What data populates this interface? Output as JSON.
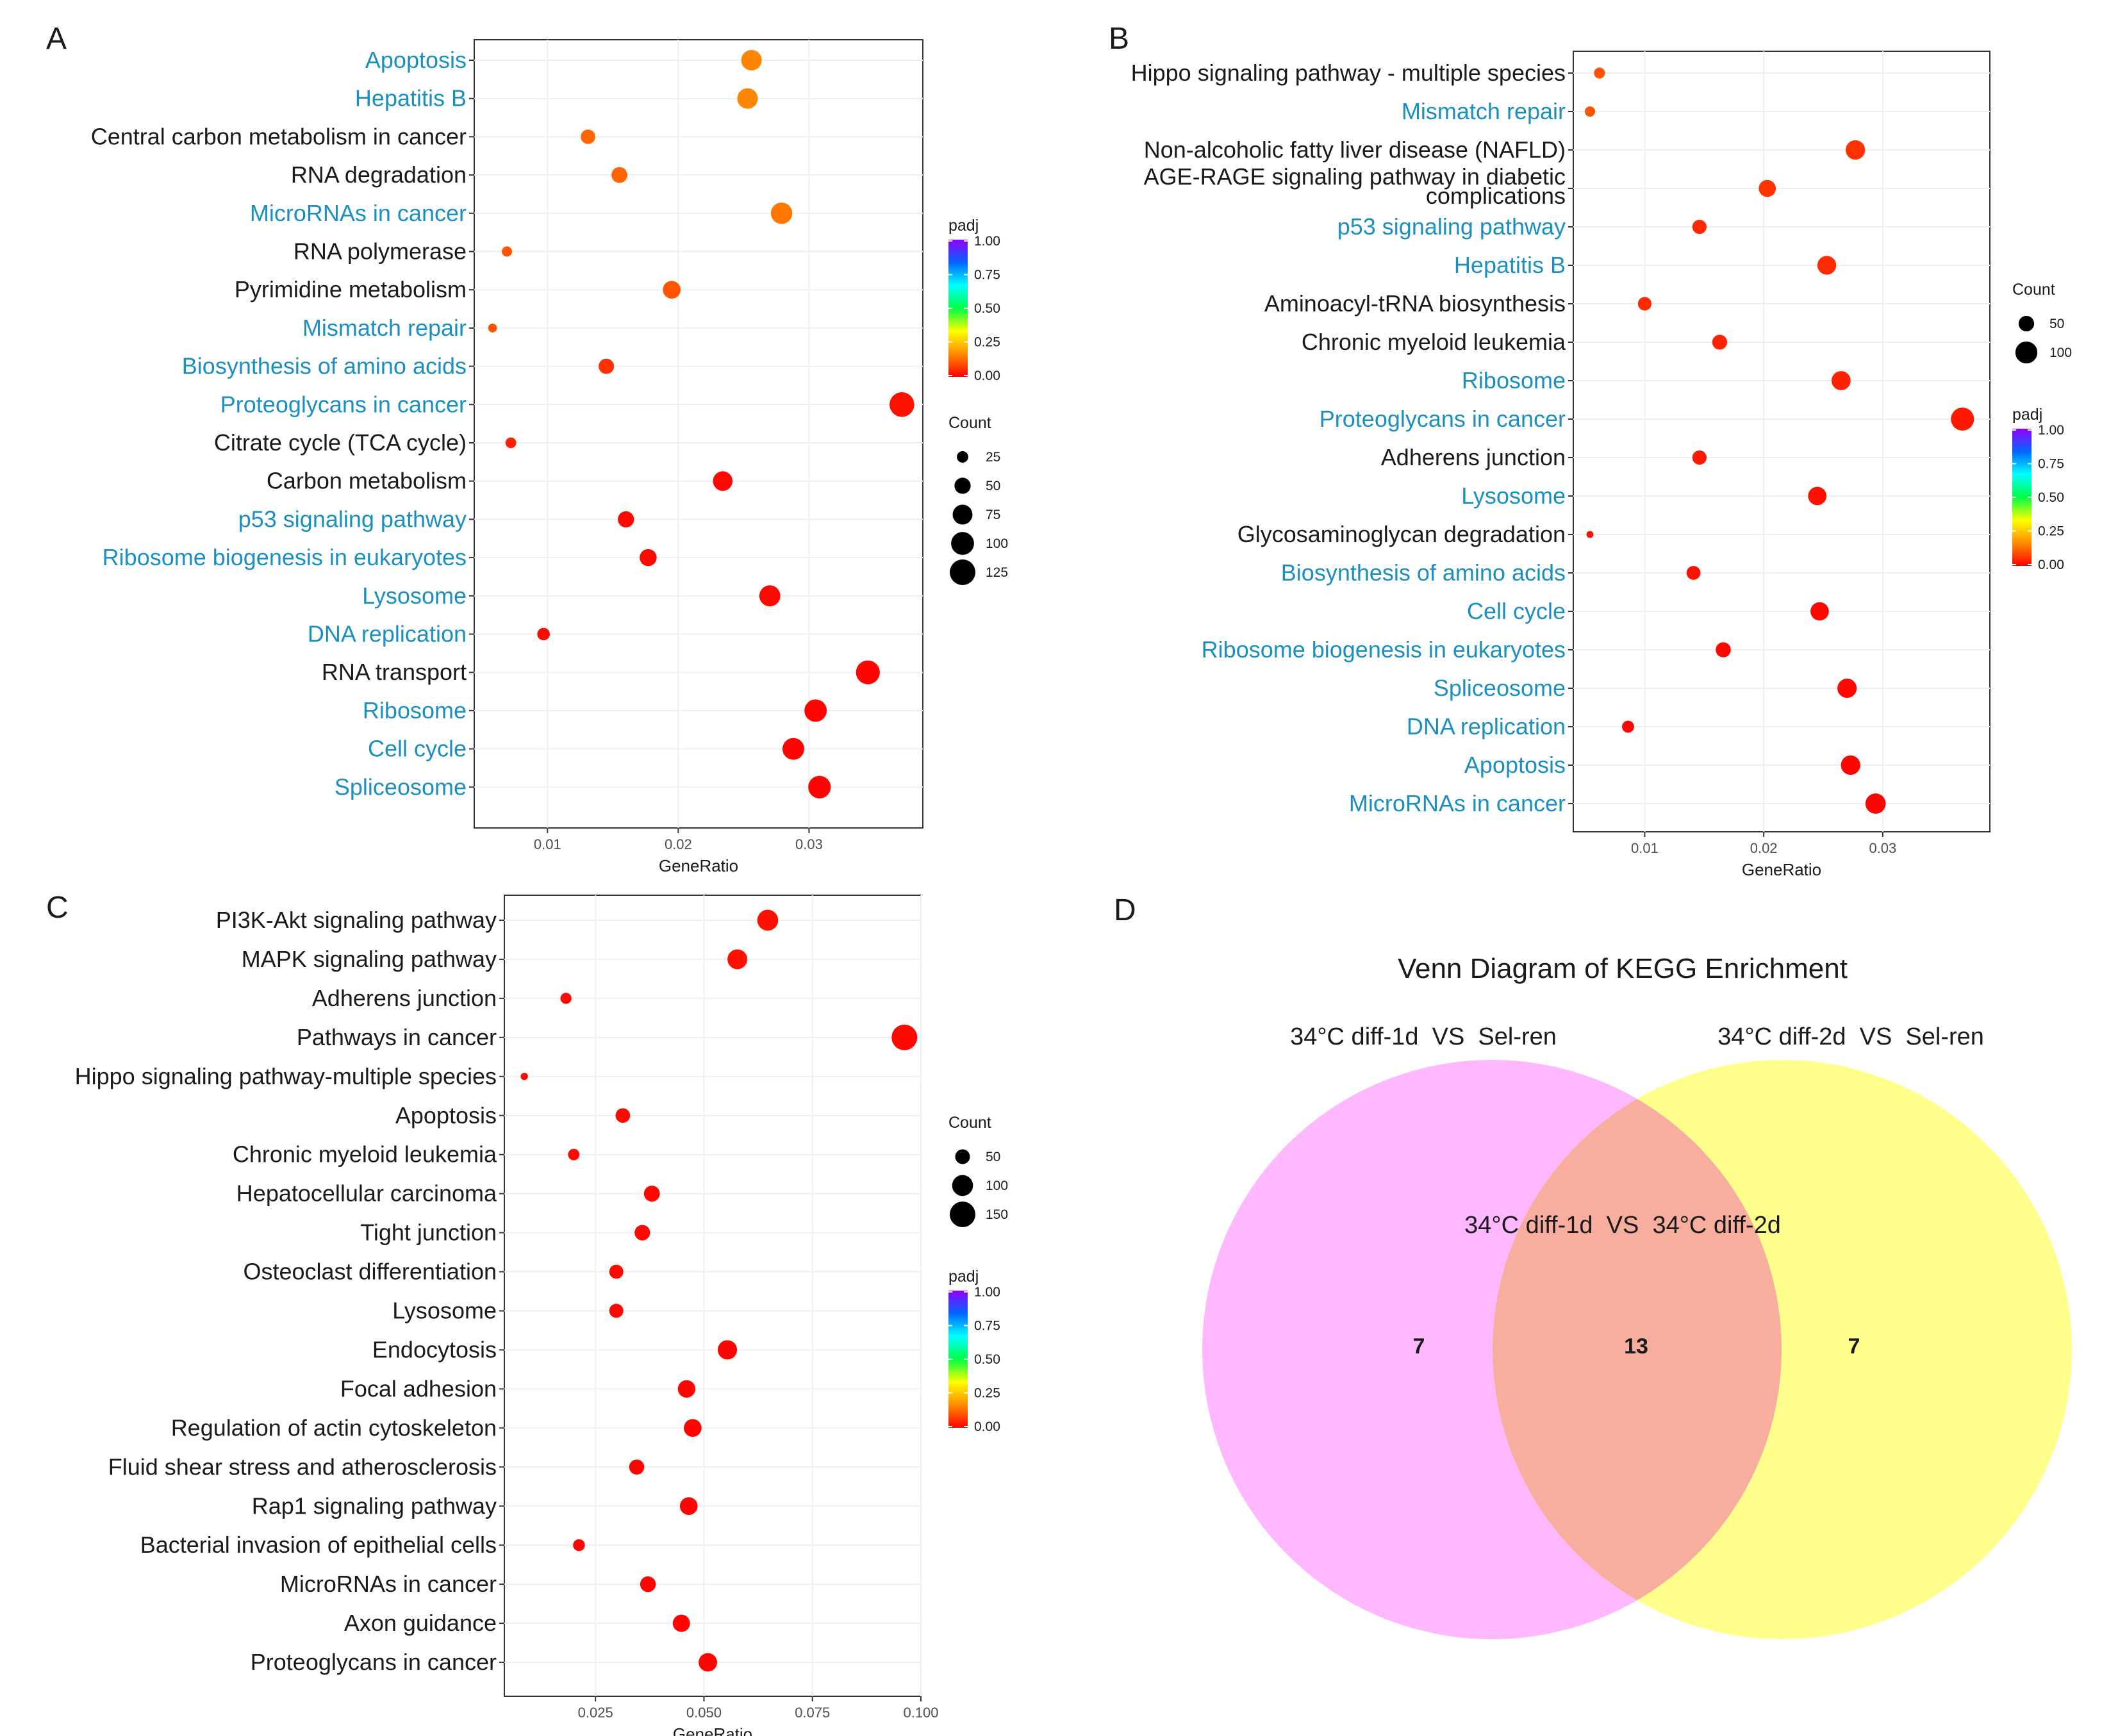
{
  "colors": {
    "highlight_label": "#1a8fc0",
    "plain_label": "#1a1a1a",
    "panel_border": "#333333",
    "grid": "#efefef",
    "venn_left": "#ffb8ff",
    "venn_right": "#ffff8c",
    "venn_overlap": "#f7ae9e",
    "padj_scale": [
      "#ff0000",
      "#ff8c00",
      "#ffff00",
      "#00ff44",
      "#00ffff",
      "#0066ff",
      "#9400ff"
    ]
  },
  "chart_data": [
    {
      "panel": "A",
      "type": "scatter",
      "xlabel": "GeneRatio",
      "xlim": [
        0.0044,
        0.0387
      ],
      "xticks": [
        0.01,
        0.02,
        0.03
      ],
      "xtick_labels": [
        "0.01",
        "0.02",
        "0.03"
      ],
      "categories": [
        "Apoptosis",
        "Hepatitis B",
        "Central carbon metabolism in cancer",
        "RNA degradation",
        "MicroRNAs in cancer",
        "RNA polymerase",
        "Pyrimidine metabolism",
        "Mismatch repair",
        "Biosynthesis of amino acids",
        "Proteoglycans in cancer",
        "Citrate cycle (TCA cycle)",
        "Carbon metabolism",
        "p53 signaling pathway",
        "Ribosome biogenesis in eukaryotes",
        "Lysosome",
        "DNA replication",
        "RNA transport",
        "Ribosome",
        "Cell cycle",
        "Spliceosome"
      ],
      "highlighted": [
        true,
        true,
        false,
        false,
        true,
        false,
        false,
        true,
        true,
        true,
        false,
        false,
        true,
        true,
        true,
        true,
        false,
        true,
        true,
        true
      ],
      "gene_ratio": [
        0.0256,
        0.0253,
        0.0131,
        0.0155,
        0.0279,
        0.0069,
        0.0195,
        0.0058,
        0.0145,
        0.0371,
        0.0072,
        0.0234,
        0.016,
        0.0177,
        0.027,
        0.0097,
        0.0345,
        0.0305,
        0.0288,
        0.0308
      ],
      "count": [
        80,
        80,
        40,
        48,
        87,
        20,
        60,
        15,
        45,
        116,
        22,
        73,
        50,
        55,
        84,
        30,
        108,
        95,
        90,
        97
      ],
      "padj": [
        0.16,
        0.16,
        0.12,
        0.12,
        0.14,
        0.1,
        0.1,
        0.1,
        0.06,
        0.02,
        0.04,
        0.01,
        0.01,
        0.01,
        0.01,
        0.01,
        0.005,
        0.005,
        0.005,
        0.005
      ],
      "legend": {
        "color_title": "padj",
        "color_ticks": [
          "1.00",
          "0.75",
          "0.50",
          "0.25",
          "0.00"
        ],
        "size_title": "Count",
        "size_ticks": [
          "25",
          "50",
          "75",
          "100",
          "125"
        ],
        "size_values": [
          25,
          50,
          75,
          100,
          125
        ],
        "color_first": true
      }
    },
    {
      "panel": "B",
      "type": "scatter",
      "xlabel": "GeneRatio",
      "xlim": [
        0.004,
        0.039
      ],
      "xticks": [
        0.01,
        0.02,
        0.03
      ],
      "xtick_labels": [
        "0.01",
        "0.02",
        "0.03"
      ],
      "categories": [
        "Hippo signaling pathway - multiple species",
        "Mismatch repair",
        "Non-alcoholic fatty liver disease (NAFLD)",
        "AGE-RAGE signaling pathway in diabetic\ncomplications",
        "p53 signaling pathway",
        "Hepatitis B",
        "Aminoacyl-tRNA biosynthesis",
        "Chronic myeloid leukemia",
        "Ribosome",
        "Proteoglycans in cancer",
        "Adherens junction",
        "Lysosome",
        "Glycosaminoglycan degradation",
        "Biosynthesis of amino acids",
        "Cell cycle",
        "Ribosome biogenesis in eukaryotes",
        "Spliceosome",
        "DNA replication",
        "Apoptosis",
        "MicroRNAs in cancer"
      ],
      "highlighted": [
        false,
        true,
        false,
        false,
        true,
        true,
        false,
        false,
        true,
        true,
        false,
        true,
        false,
        true,
        true,
        true,
        true,
        true,
        true,
        true
      ],
      "gene_ratio": [
        0.0062,
        0.0054,
        0.0277,
        0.0203,
        0.0146,
        0.0253,
        0.01,
        0.0163,
        0.0265,
        0.0367,
        0.0146,
        0.0245,
        0.0054,
        0.0141,
        0.0247,
        0.0166,
        0.027,
        0.0086,
        0.0273,
        0.0294
      ],
      "count": [
        25,
        22,
        78,
        60,
        42,
        73,
        38,
        46,
        75,
        110,
        42,
        70,
        10,
        40,
        70,
        47,
        77,
        30,
        78,
        85
      ],
      "padj": [
        0.1,
        0.1,
        0.06,
        0.06,
        0.05,
        0.05,
        0.05,
        0.04,
        0.04,
        0.03,
        0.03,
        0.02,
        0.02,
        0.02,
        0.01,
        0.01,
        0.01,
        0.005,
        0.005,
        0.005
      ],
      "legend": {
        "color_title": "padj",
        "color_ticks": [
          "1.00",
          "0.75",
          "0.50",
          "0.25",
          "0.00"
        ],
        "size_title": "Count",
        "size_ticks": [
          "50",
          "100"
        ],
        "size_values": [
          50,
          100
        ],
        "color_first": false
      }
    },
    {
      "panel": "C",
      "type": "scatter",
      "xlabel": "GeneRatio",
      "xlim": [
        0.004,
        0.1
      ],
      "xticks": [
        0.025,
        0.05,
        0.075,
        0.1
      ],
      "xtick_labels": [
        "0.025",
        "0.050",
        "0.075",
        "0.100"
      ],
      "categories": [
        "PI3K-Akt signaling pathway",
        "MAPK signaling pathway",
        "Adherens junction",
        "Pathways in cancer",
        "Hippo signaling pathway-multiple species",
        "Apoptosis",
        "Chronic myeloid leukemia",
        "Hepatocellular carcinoma",
        "Tight junction",
        "Osteoclast differentiation",
        "Lysosome",
        "Endocytosis",
        "Focal adhesion",
        "Regulation of actin cytoskeleton",
        "Fluid shear stress and atherosclerosis",
        "Rap1 signaling pathway",
        "Bacterial invasion of epithelial cells",
        "MicroRNAs in cancer",
        "Axon guidance",
        "Proteoglycans in cancer"
      ],
      "highlighted": [
        false,
        false,
        false,
        false,
        false,
        false,
        false,
        false,
        false,
        false,
        false,
        false,
        false,
        false,
        false,
        false,
        false,
        false,
        false,
        false
      ],
      "gene_ratio": [
        0.0647,
        0.0577,
        0.0182,
        0.0962,
        0.0086,
        0.0313,
        0.02,
        0.038,
        0.0358,
        0.0298,
        0.0298,
        0.0554,
        0.046,
        0.0474,
        0.0345,
        0.0465,
        0.0212,
        0.0371,
        0.0448,
        0.0509
      ],
      "count": [
        100,
        90,
        28,
        150,
        12,
        48,
        30,
        58,
        55,
        45,
        45,
        85,
        70,
        72,
        52,
        72,
        32,
        56,
        68,
        78
      ],
      "padj": [
        0.02,
        0.02,
        0.01,
        0.01,
        0.01,
        0.01,
        0.01,
        0.01,
        0.01,
        0.01,
        0.01,
        0.005,
        0.005,
        0.005,
        0.005,
        0.005,
        0.005,
        0.005,
        0.005,
        0.005
      ],
      "legend": {
        "color_title": "padj",
        "color_ticks": [
          "1.00",
          "0.75",
          "0.50",
          "0.25",
          "0.00"
        ],
        "size_title": "Count",
        "size_ticks": [
          "50",
          "100",
          "150"
        ],
        "size_values": [
          50,
          100,
          150
        ],
        "color_first": false
      }
    }
  ],
  "venn": {
    "panel": "D",
    "type": "venn",
    "title": "Venn Diagram of KEGG Enrichment",
    "left_label": "34°C diff-1d  VS  Sel-ren",
    "right_label": "34°C diff-2d  VS  Sel-ren",
    "overlap_label": "34°C diff-1d  VS  34°C diff-2d",
    "left_only": "7",
    "overlap": "13",
    "right_only": "7"
  }
}
